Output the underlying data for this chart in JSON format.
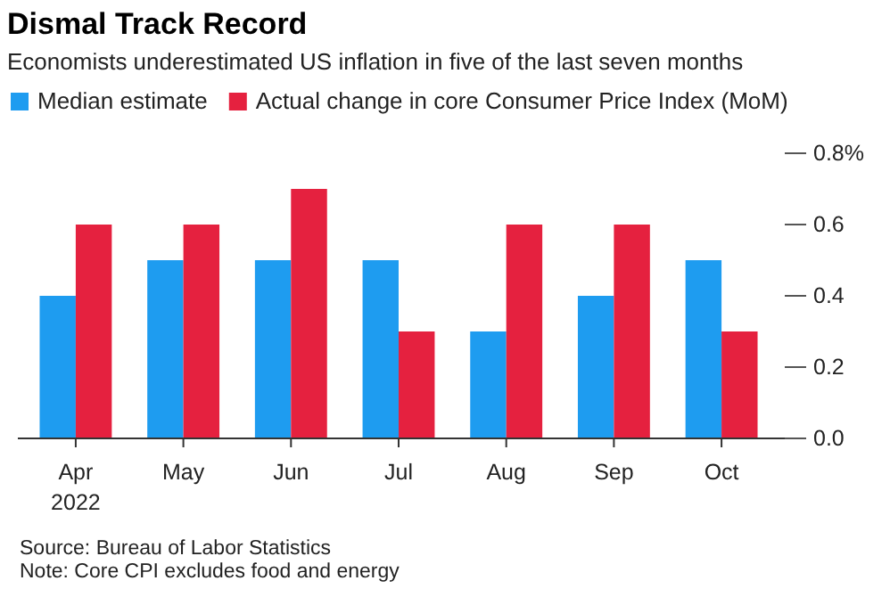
{
  "chart_data": {
    "type": "bar",
    "title": "Dismal Track Record",
    "subtitle": "Economists underestimated US inflation in five of the last seven months",
    "categories": [
      "Apr 2022",
      "May",
      "Jun",
      "Jul",
      "Aug",
      "Sep",
      "Oct"
    ],
    "series": [
      {
        "name": "Median estimate",
        "color": "#1e9cf0",
        "values": [
          0.4,
          0.5,
          0.5,
          0.5,
          0.3,
          0.4,
          0.5
        ]
      },
      {
        "name": "Actual change in core Consumer Price Index (MoM)",
        "color": "#e5213f",
        "values": [
          0.6,
          0.6,
          0.7,
          0.3,
          0.6,
          0.6,
          0.3
        ]
      }
    ],
    "ylim": [
      0,
      0.8
    ],
    "yticks": [
      {
        "value": 0,
        "label": "0.0"
      },
      {
        "value": 0.2,
        "label": "0.2"
      },
      {
        "value": 0.4,
        "label": "0.4"
      },
      {
        "value": 0.6,
        "label": "0.6"
      },
      {
        "value": 0.8,
        "label": "0.8%"
      }
    ],
    "legend": "top left",
    "annotations": [
      "Source: Bureau of Labor Statistics",
      "Note: Core CPI excludes food and energy"
    ]
  }
}
